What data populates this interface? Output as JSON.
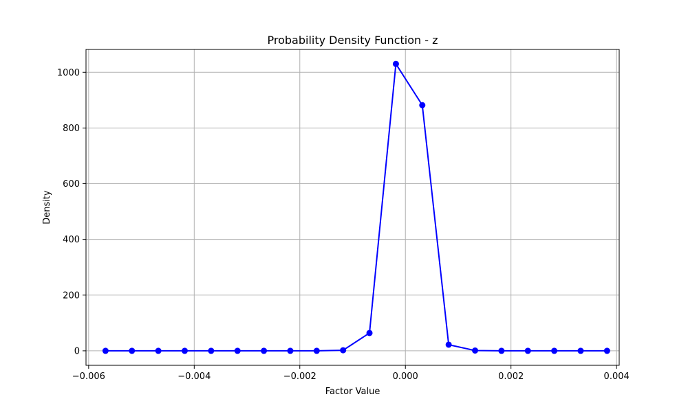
{
  "chart_data": {
    "type": "line",
    "title": "Probability Density Function - z",
    "xlabel": "Factor Value",
    "ylabel": "Density",
    "xlim": [
      -0.00605,
      0.00405
    ],
    "ylim": [
      -52,
      1082
    ],
    "grid": true,
    "x_ticks": [
      -0.006,
      -0.004,
      -0.002,
      0.0,
      0.002,
      0.004
    ],
    "x_tick_labels": [
      "−0.006",
      "−0.004",
      "−0.002",
      "0.000",
      "0.002",
      "0.004"
    ],
    "y_ticks": [
      0,
      200,
      400,
      600,
      800,
      1000
    ],
    "y_tick_labels": [
      "0",
      "200",
      "400",
      "600",
      "800",
      "1000"
    ],
    "series": [
      {
        "color": "#0000ff",
        "marker": "circle",
        "x": [
          -0.00568,
          -0.00518,
          -0.00468,
          -0.00418,
          -0.00368,
          -0.00318,
          -0.00268,
          -0.00218,
          -0.00168,
          -0.00118,
          -0.00068,
          -0.00018,
          0.00032,
          0.00082,
          0.00132,
          0.00182,
          0.00232,
          0.00282,
          0.00332,
          0.00382
        ],
        "y": [
          0,
          0,
          0,
          0,
          0,
          0,
          0,
          0,
          0,
          2,
          64,
          1030,
          882,
          22,
          1,
          0,
          0,
          0,
          0,
          0
        ]
      }
    ]
  }
}
